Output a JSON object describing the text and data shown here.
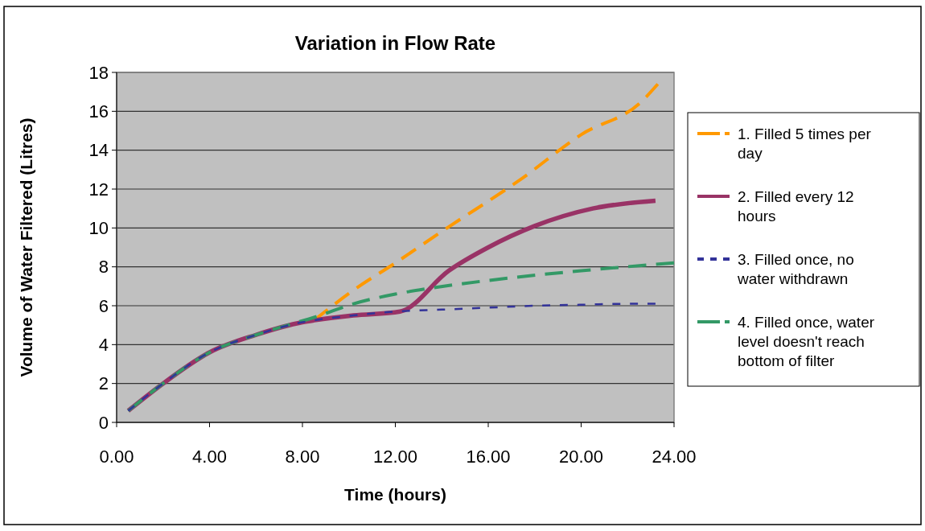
{
  "chart_data": {
    "type": "line",
    "title": "Variation in Flow Rate",
    "xlabel": "Time (hours)",
    "ylabel": "Volume of Water Filtered (Litres)",
    "xlim": [
      0,
      24
    ],
    "xticks": [
      {
        "value": 0,
        "label": "0.00"
      },
      {
        "value": 4,
        "label": "4.00"
      },
      {
        "value": 8,
        "label": "8.00"
      },
      {
        "value": 12,
        "label": "12.00"
      },
      {
        "value": 16,
        "label": "16.00"
      },
      {
        "value": 20,
        "label": "20.00"
      },
      {
        "value": 24,
        "label": "24.00"
      }
    ],
    "ylim": [
      0,
      18
    ],
    "yticks": [
      0,
      2,
      4,
      6,
      8,
      10,
      12,
      14,
      16,
      18
    ],
    "grid": "y",
    "legend": "right",
    "series": [
      {
        "name": "1. Filled 5 times per day",
        "color": "#ff9900",
        "line_style": "dashed",
        "x": [
          8.5,
          10.2,
          12,
          14.1,
          17.4,
          20,
          22.6,
          23.3
        ],
        "values": [
          5.25,
          6.8,
          8.2,
          9.9,
          12.5,
          14.8,
          16.5,
          17.4
        ]
      },
      {
        "name": "2. Filled every 12 hours",
        "color": "#993366",
        "line_style": "solid",
        "x": [
          0.5,
          2,
          4,
          6,
          8,
          8.5,
          10.2,
          12.2,
          14.3,
          16,
          18,
          20.5,
          23.2
        ],
        "values": [
          0.6,
          2.0,
          3.6,
          4.5,
          5.15,
          5.25,
          5.5,
          5.7,
          7.8,
          9.0,
          10.1,
          11.0,
          11.4
        ]
      },
      {
        "name": "3. Filled once, no water withdrawn",
        "color": "#333399",
        "line_style": "dotted",
        "x": [
          0.5,
          2,
          4,
          6,
          8,
          8.5,
          10.2,
          12,
          14,
          16,
          18,
          20,
          22,
          23.2
        ],
        "values": [
          0.6,
          2.0,
          3.6,
          4.5,
          5.15,
          5.25,
          5.5,
          5.7,
          5.8,
          5.9,
          6.0,
          6.05,
          6.1,
          6.1
        ]
      },
      {
        "name": "4. Filled once, water level doesn't reach bottom of filter",
        "color": "#339966",
        "line_style": "dashed",
        "x": [
          0.5,
          2,
          4,
          6,
          7.5,
          8.5,
          10.2,
          12,
          13.5,
          16,
          20,
          24
        ],
        "values": [
          0.6,
          2.0,
          3.6,
          4.5,
          5.05,
          5.4,
          6.1,
          6.6,
          6.9,
          7.3,
          7.8,
          8.2
        ]
      }
    ]
  }
}
